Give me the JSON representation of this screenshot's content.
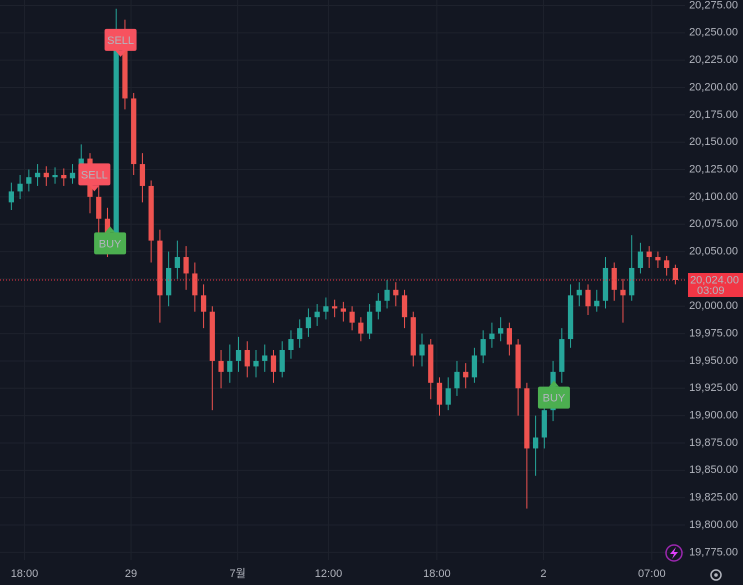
{
  "chart_data": {
    "type": "candlestick",
    "xlim": [
      -0.4,
      38.8
    ],
    "ylim": [
      19768,
      20280
    ],
    "xticks": [
      {
        "value": 1,
        "label": "18:00"
      },
      {
        "value": 7.1,
        "label": "29"
      },
      {
        "value": 13.2,
        "label": "7월"
      },
      {
        "value": 18.4,
        "label": "12:00"
      },
      {
        "value": 24.6,
        "label": "18:00"
      },
      {
        "value": 30.7,
        "label": "2"
      },
      {
        "value": 36.9,
        "label": "07:00"
      }
    ],
    "yticks": [
      {
        "value": 19775,
        "label": "19,775.00"
      },
      {
        "value": 19800,
        "label": "19,800.00"
      },
      {
        "value": 19825,
        "label": "19,825.00"
      },
      {
        "value": 19850,
        "label": "19,850.00"
      },
      {
        "value": 19875,
        "label": "19,875.00"
      },
      {
        "value": 19900,
        "label": "19,900.00"
      },
      {
        "value": 19925,
        "label": "19,925.00"
      },
      {
        "value": 19950,
        "label": "19,950.00"
      },
      {
        "value": 19975,
        "label": "19,975.00"
      },
      {
        "value": 20000,
        "label": "20,000.00"
      },
      {
        "value": 20025,
        "label": "20,025.00"
      },
      {
        "value": 20050,
        "label": "20,050.00"
      },
      {
        "value": 20075,
        "label": "20,075.00"
      },
      {
        "value": 20100,
        "label": "20,100.00"
      },
      {
        "value": 20125,
        "label": "20,125.00"
      },
      {
        "value": 20150,
        "label": "20,150.00"
      },
      {
        "value": 20175,
        "label": "20,175.00"
      },
      {
        "value": 20200,
        "label": "20,200.00"
      },
      {
        "value": 20225,
        "label": "20,225.00"
      },
      {
        "value": 20250,
        "label": "20,250.00"
      },
      {
        "value": 20275,
        "label": "20,275.00"
      }
    ],
    "grid": true,
    "up_color": "#26a69a",
    "down_color": "#ef5350",
    "x": [
      0.25,
      0.75,
      1.25,
      1.75,
      2.25,
      2.75,
      3.25,
      3.75,
      4.25,
      4.75,
      5.25,
      5.75,
      6.25,
      6.75,
      7.25,
      7.75,
      8.25,
      8.75,
      9.25,
      9.75,
      10.25,
      10.75,
      11.25,
      11.75,
      12.25,
      12.75,
      13.25,
      13.75,
      14.25,
      14.75,
      15.25,
      15.75,
      16.25,
      16.75,
      17.25,
      17.75,
      18.25,
      18.75,
      19.25,
      19.75,
      20.25,
      20.75,
      21.25,
      21.75,
      22.25,
      22.75,
      23.25,
      23.75,
      24.25,
      24.75,
      25.25,
      25.75,
      26.25,
      26.75,
      27.25,
      27.75,
      28.25,
      28.75,
      29.25,
      29.75,
      30.25,
      30.75,
      31.25,
      31.75,
      32.25,
      32.75,
      33.25,
      33.75,
      34.25,
      34.75,
      35.25,
      35.75,
      36.25,
      36.75,
      37.25,
      37.75,
      38.25
    ],
    "open": [
      20095,
      20105,
      20112,
      20118,
      20122,
      20118,
      20120,
      20117,
      20122,
      20135,
      20100,
      20080,
      20065,
      20240,
      20190,
      20130,
      20110,
      20060,
      20010,
      20035,
      20045,
      20030,
      20010,
      19995,
      19950,
      19940,
      19950,
      19960,
      19945,
      19950,
      19955,
      19940,
      19960,
      19970,
      19980,
      19990,
      19995,
      20000,
      19998,
      19995,
      19985,
      19975,
      19995,
      20005,
      20015,
      20010,
      19990,
      19955,
      19965,
      19930,
      19910,
      19925,
      19940,
      19935,
      19955,
      19970,
      19975,
      19980,
      19965,
      19925,
      19870,
      19880,
      19905,
      19940,
      19970,
      20010,
      20015,
      20000,
      20005,
      20035,
      20015,
      20010,
      20035,
      20050,
      20045,
      20042,
      20035
    ],
    "high": [
      20113,
      20120,
      20125,
      20130,
      20128,
      20127,
      20126,
      20130,
      20148,
      20140,
      20110,
      20090,
      20272,
      20262,
      20195,
      20140,
      20115,
      20070,
      20050,
      20060,
      20055,
      20040,
      20020,
      20000,
      19960,
      19965,
      19972,
      19968,
      19960,
      19965,
      19960,
      19968,
      19978,
      19988,
      19998,
      20002,
      20008,
      20006,
      20004,
      20000,
      19990,
      20002,
      20012,
      20024,
      20022,
      20015,
      19995,
      19975,
      19970,
      19935,
      19935,
      19950,
      19948,
      19962,
      19978,
      19985,
      19990,
      19985,
      19970,
      19930,
      19900,
      19920,
      19950,
      19980,
      20020,
      20022,
      20020,
      20015,
      20045,
      20040,
      20025,
      20065,
      20058,
      20055,
      20050,
      20046,
      20038
    ],
    "low": [
      20088,
      20098,
      20105,
      20110,
      20110,
      20112,
      20110,
      20112,
      20118,
      20085,
      20060,
      20045,
      20060,
      20180,
      20120,
      20095,
      20040,
      19985,
      20000,
      20025,
      20015,
      19995,
      19980,
      19905,
      19925,
      19930,
      19940,
      19935,
      19935,
      19940,
      19930,
      19935,
      19952,
      19962,
      19972,
      19982,
      19988,
      19990,
      19986,
      19978,
      19968,
      19970,
      19988,
      19998,
      20000,
      19980,
      19945,
      19945,
      19915,
      19900,
      19905,
      19918,
      19925,
      19930,
      19948,
      19962,
      19968,
      19955,
      19900,
      19815,
      19845,
      19870,
      19895,
      19930,
      19962,
      20000,
      19992,
      19995,
      19998,
      20005,
      19985,
      20005,
      20030,
      20035,
      20035,
      20028,
      20020
    ],
    "close": [
      20105,
      20112,
      20118,
      20122,
      20118,
      20120,
      20117,
      20122,
      20135,
      20100,
      20080,
      20065,
      20240,
      20190,
      20130,
      20110,
      20060,
      20010,
      20035,
      20045,
      20030,
      20010,
      19995,
      19950,
      19940,
      19950,
      19960,
      19945,
      19950,
      19955,
      19940,
      19960,
      19970,
      19980,
      19990,
      19995,
      20000,
      19998,
      19995,
      19985,
      19975,
      19995,
      20005,
      20015,
      20010,
      19990,
      19955,
      19965,
      19930,
      19910,
      19925,
      19940,
      19935,
      19955,
      19970,
      19975,
      19980,
      19965,
      19925,
      19870,
      19880,
      19905,
      19940,
      19970,
      20010,
      20015,
      20000,
      20005,
      20035,
      20015,
      20010,
      20035,
      20050,
      20045,
      20042,
      20035,
      20024
    ],
    "annotations": [
      {
        "text": "SELL",
        "x": 6.5,
        "y": 20228,
        "pointer": "down",
        "color": "#f7525f"
      },
      {
        "text": "SELL",
        "x": 5.0,
        "y": 20105,
        "pointer": "down",
        "color": "#f7525f"
      },
      {
        "text": "BUY",
        "x": 5.9,
        "y": 20073,
        "pointer": "up",
        "color": "#4caf50"
      },
      {
        "text": "BUY",
        "x": 31.3,
        "y": 19932,
        "pointer": "up",
        "color": "#4caf50"
      }
    ],
    "last_price": {
      "value": 20024,
      "label": "20,024.00"
    },
    "countdown": "03:09",
    "last_color": "#f23645"
  }
}
